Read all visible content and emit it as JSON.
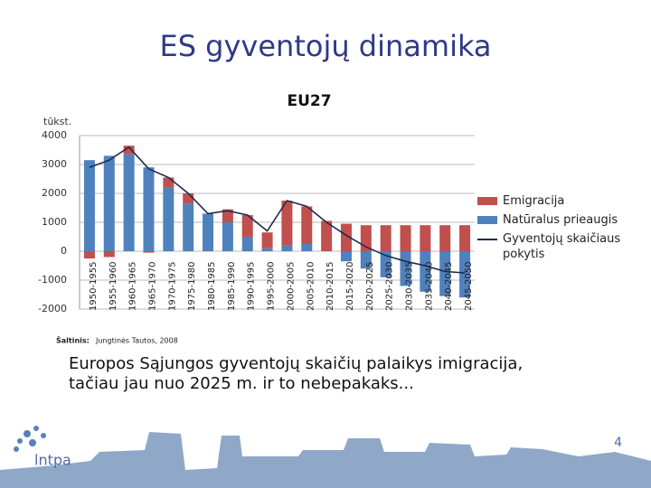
{
  "slide": {
    "title": "ES gyventojų dinamika",
    "source_label": "Šaltinis:",
    "source": "Jungtinės Tautos, 2008",
    "text": "Europos Sąjungos gyventojų skaičių palaikys imigracija, tačiau jau nuo 2025 m. ir to nebepakaks...",
    "page_number": "4",
    "logo": "lntpa"
  },
  "chart_data": {
    "type": "bar",
    "title": "EU27",
    "y_label": "tūkst.",
    "categories": [
      "1950-1955",
      "1955-1960",
      "1960-1965",
      "1965-1970",
      "1970-1975",
      "1975-1980",
      "1980-1985",
      "1985-1990",
      "1990-1995",
      "1995-2000",
      "2000-2005",
      "2005-2010",
      "2010-2015",
      "2015-2020",
      "2020-2025",
      "2025-2030",
      "2030-2035",
      "2035-2040",
      "2040-2045",
      "2045-2050"
    ],
    "series": [
      {
        "name": "Emigracija",
        "type": "bar",
        "color": "#c0504d",
        "values": [
          -250,
          -200,
          300,
          -50,
          350,
          350,
          0,
          450,
          750,
          550,
          1550,
          1300,
          1050,
          950,
          900,
          900,
          900,
          900,
          900,
          900
        ]
      },
      {
        "name": "Natūralus prieaugis",
        "type": "bar",
        "color": "#4f81bd",
        "values": [
          3150,
          3300,
          3350,
          2900,
          2200,
          1650,
          1300,
          1000,
          500,
          100,
          200,
          250,
          0,
          -350,
          -600,
          -900,
          -1200,
          -1400,
          -1550,
          -1600
        ]
      },
      {
        "name": "Gyventojų skaičiaus pokytis",
        "type": "line",
        "color": "#1f2a4f",
        "values": [
          2900,
          3150,
          3600,
          2850,
          2550,
          2000,
          1300,
          1400,
          1250,
          700,
          1750,
          1550,
          1000,
          550,
          150,
          -150,
          -350,
          -500,
          -700,
          -750
        ]
      }
    ],
    "ylim": [
      -2000,
      4000
    ],
    "yticks": [
      -2000,
      -1000,
      0,
      1000,
      2000,
      3000,
      4000
    ],
    "grid": true,
    "legend": "right"
  }
}
